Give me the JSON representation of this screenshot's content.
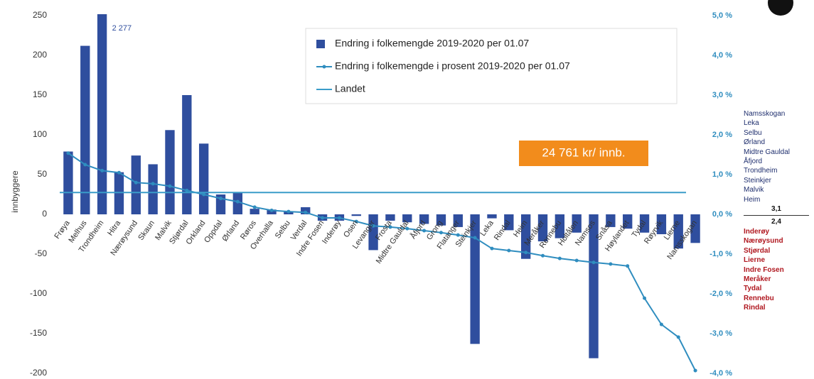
{
  "chart_data": {
    "type": "combo",
    "ylabel": "innbyggere",
    "annotation": "24 761 kr/ innb.",
    "categories": [
      "Frøya",
      "Melhus",
      "Trondheim",
      "Hitra",
      "Nærøysund",
      "Skaun",
      "Malvik",
      "Stjørdal",
      "Orkland",
      "Oppdal",
      "Ørland",
      "Røros",
      "Overhalla",
      "Selbu",
      "Verdal",
      "Indre Fosen",
      "Inderøy",
      "Osen",
      "Levanger",
      "Frosta",
      "Midtre Gauldal",
      "Åfjord",
      "Grong",
      "Flatanger",
      "Steinkjer",
      "Leka",
      "Rindal",
      "Heim",
      "Meråker",
      "Rennebu",
      "Holtålen",
      "Namsos",
      "Snåsa",
      "Høylandet",
      "Tydal",
      "Røyrvik",
      "Lierne",
      "Namsskogan"
    ],
    "series": [
      {
        "name": "Endring i folkemengde 2019-2020 per 01.07",
        "type": "bar",
        "color": "#2f4e9e",
        "values": [
          79,
          212,
          2277,
          53,
          74,
          63,
          106,
          150,
          89,
          25,
          27,
          7,
          6,
          4,
          9,
          -8,
          -8,
          -2,
          -45,
          -8,
          -10,
          -12,
          -14,
          -16,
          -163,
          -5,
          -20,
          -56,
          -34,
          -30,
          -23,
          -181,
          -16,
          -18,
          -23,
          -25,
          -43,
          -36
        ],
        "value_labels": [
          null,
          null,
          "2 277",
          null,
          null,
          null,
          null,
          null,
          null,
          null,
          null,
          null,
          null,
          null,
          null,
          null,
          null,
          null,
          null,
          null,
          null,
          null,
          null,
          null,
          null,
          null,
          null,
          null,
          null,
          null,
          null,
          null,
          null,
          null,
          null,
          null,
          null,
          null
        ]
      },
      {
        "name": "Endring i folkemengde i prosent 2019-2020 per 01.07",
        "type": "line",
        "axis": "y2",
        "color": "#2f8dbf",
        "values": [
          1.54,
          1.25,
          1.1,
          1.05,
          0.8,
          0.77,
          0.71,
          0.6,
          0.5,
          0.4,
          0.32,
          0.18,
          0.1,
          0.07,
          0.05,
          -0.09,
          -0.09,
          -0.18,
          -0.29,
          -0.32,
          -0.36,
          -0.41,
          -0.46,
          -0.52,
          -0.59,
          -0.86,
          -0.91,
          -0.96,
          -1.04,
          -1.11,
          -1.16,
          -1.21,
          -1.25,
          -1.3,
          -2.11,
          -2.77,
          -3.09,
          -3.93
        ]
      },
      {
        "name": "Landet",
        "type": "hline",
        "axis": "y2",
        "color": "#3a9cc9",
        "value": 0.55
      }
    ],
    "ylim": [
      -200,
      250
    ],
    "yticks": [
      -200,
      -150,
      -100,
      -50,
      0,
      50,
      100,
      150,
      200,
      250
    ],
    "y2lim": [
      -4,
      5
    ],
    "y2ticks": [
      {
        "value": -4,
        "label": "-4,0 %"
      },
      {
        "value": -3,
        "label": "-3,0 %"
      },
      {
        "value": -2,
        "label": "-2,0 %"
      },
      {
        "value": -1,
        "label": "-1,0 %"
      },
      {
        "value": 0,
        "label": "0,0 %"
      },
      {
        "value": 1,
        "label": "1,0 %"
      },
      {
        "value": 2,
        "label": "2,0 %"
      },
      {
        "value": 3,
        "label": "3,0 %"
      },
      {
        "value": 4,
        "label": "4,0 %"
      },
      {
        "value": 5,
        "label": "5,0 %"
      }
    ]
  },
  "side_list": {
    "top": [
      "Namsskogan",
      "Leka",
      "Selbu",
      "Ørland",
      "Midtre Gauldal",
      "Åfjord",
      "Trondheim",
      "Steinkjer",
      "Malvik",
      "Heim"
    ],
    "upper_value": "3,1",
    "lower_value": "2,4",
    "bottom": [
      "Inderøy",
      "Nærøysund",
      "Stjørdal",
      "Lierne",
      "Indre Fosen",
      "Meråker",
      "Tydal",
      "Rennebu",
      "Rindal"
    ]
  }
}
